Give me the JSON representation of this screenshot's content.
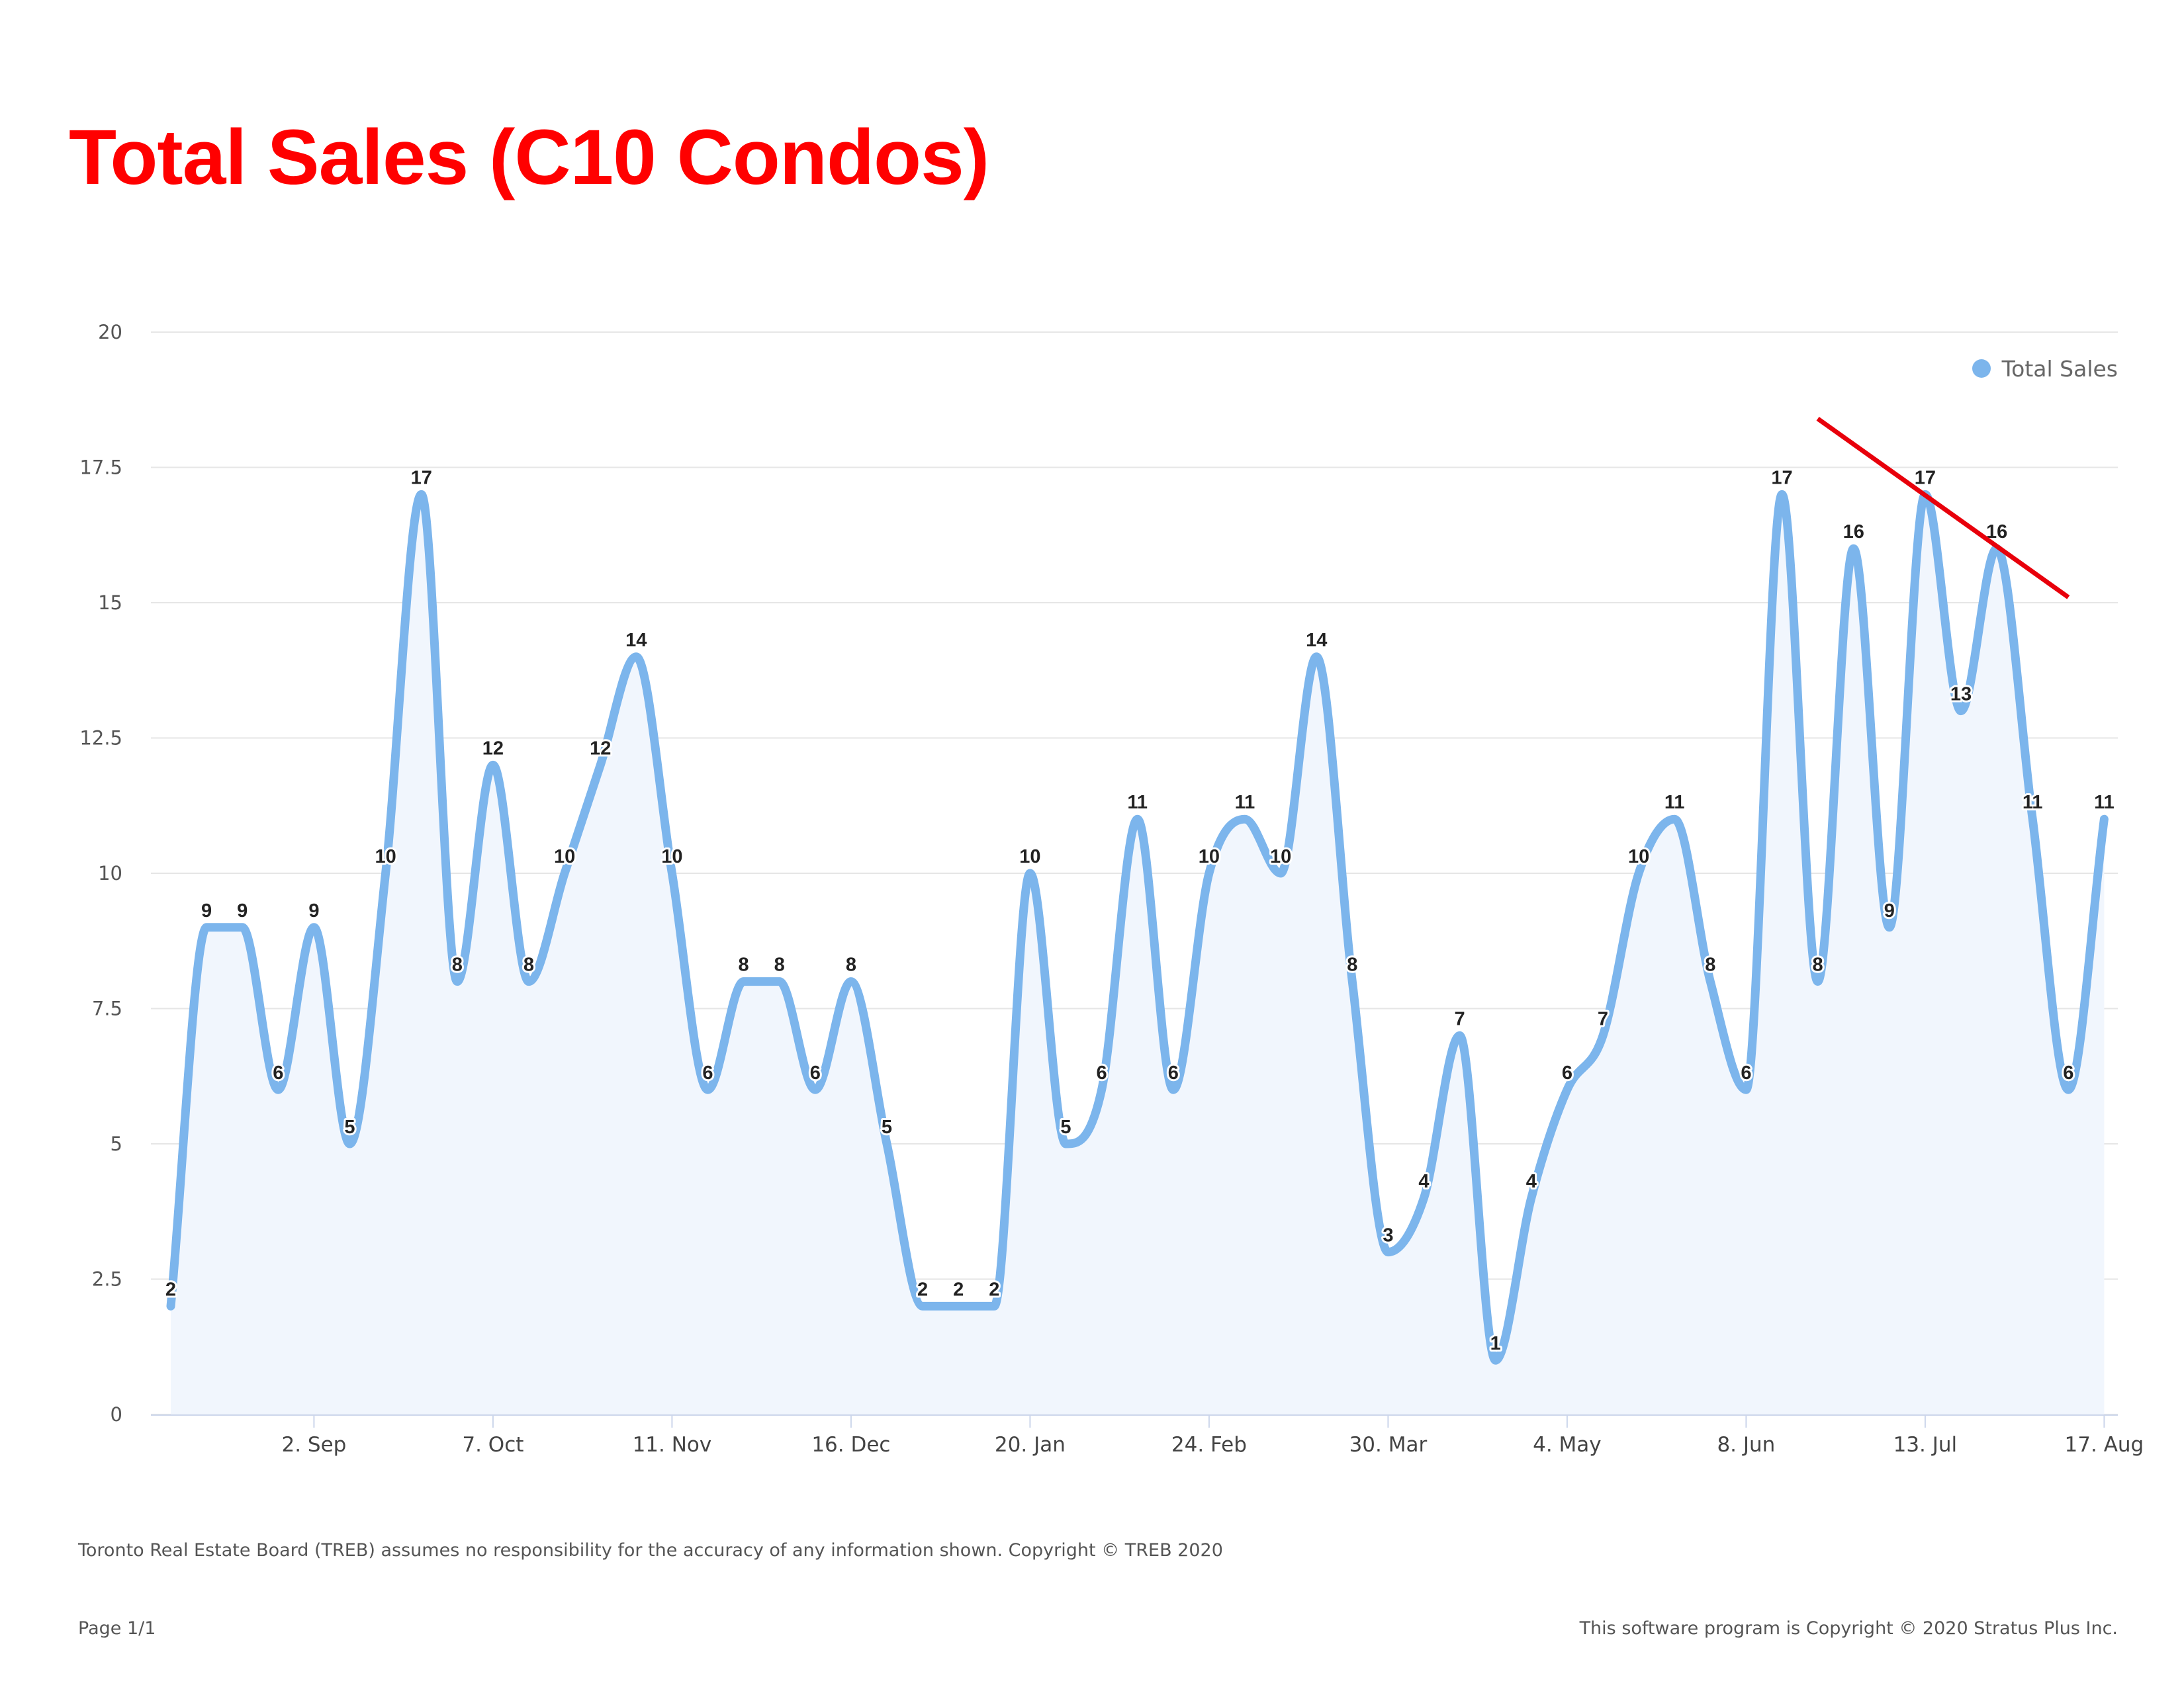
{
  "title": "Total Sales (C10 Condos)",
  "colors": {
    "title": "#ff0000",
    "series": "#7cb5ec",
    "area": "#f1f6fd",
    "grid": "#e6e6e6",
    "trend_line": "#e8000b"
  },
  "chart_data": {
    "type": "line",
    "interpolation": "spline",
    "area_fill": true,
    "grid": true,
    "legend_position": "top-right",
    "ylim": [
      0,
      20
    ],
    "y_ticks": [
      "0",
      "2.5",
      "5",
      "7.5",
      "10",
      "12.5",
      "15",
      "17.5",
      "20"
    ],
    "x_start": "2019-08-05",
    "x_ticks": [
      {
        "date": "2019-09-02",
        "label": "2. Sep"
      },
      {
        "date": "2019-10-07",
        "label": "7. Oct"
      },
      {
        "date": "2019-11-11",
        "label": "11. Nov"
      },
      {
        "date": "2019-12-16",
        "label": "16. Dec"
      },
      {
        "date": "2020-01-20",
        "label": "20. Jan"
      },
      {
        "date": "2020-02-24",
        "label": "24. Feb"
      },
      {
        "date": "2020-03-30",
        "label": "30. Mar"
      },
      {
        "date": "2020-05-04",
        "label": "4. May"
      },
      {
        "date": "2020-06-08",
        "label": "8. Jun"
      },
      {
        "date": "2020-07-13",
        "label": "13. Jul"
      },
      {
        "date": "2020-08-17",
        "label": "17. Aug"
      }
    ],
    "series": [
      {
        "name": "Total Sales",
        "values": [
          2,
          9,
          9,
          6,
          9,
          5,
          10,
          17,
          8,
          12,
          8,
          10,
          12,
          14,
          10,
          6,
          8,
          8,
          6,
          8,
          5,
          2,
          2,
          2,
          10,
          5,
          6,
          11,
          6,
          10,
          11,
          10,
          14,
          8,
          3,
          4,
          7,
          1,
          4,
          6,
          7,
          10,
          11,
          8,
          6,
          17,
          8,
          16,
          9,
          17,
          13,
          16,
          11,
          6,
          11
        ]
      }
    ],
    "annotations": [
      {
        "type": "trend_line",
        "from": {
          "date": "2020-06-22",
          "value": 18.4
        },
        "to": {
          "date": "2020-08-10",
          "value": 15.1
        }
      }
    ]
  },
  "footer": {
    "disclaimer": "Toronto Real Estate Board (TREB) assumes no responsibility for the accuracy of any information shown. Copyright © TREB 2020",
    "page": "Page 1/1",
    "software_copyright": "This software program is Copyright © 2020 Stratus Plus Inc."
  }
}
